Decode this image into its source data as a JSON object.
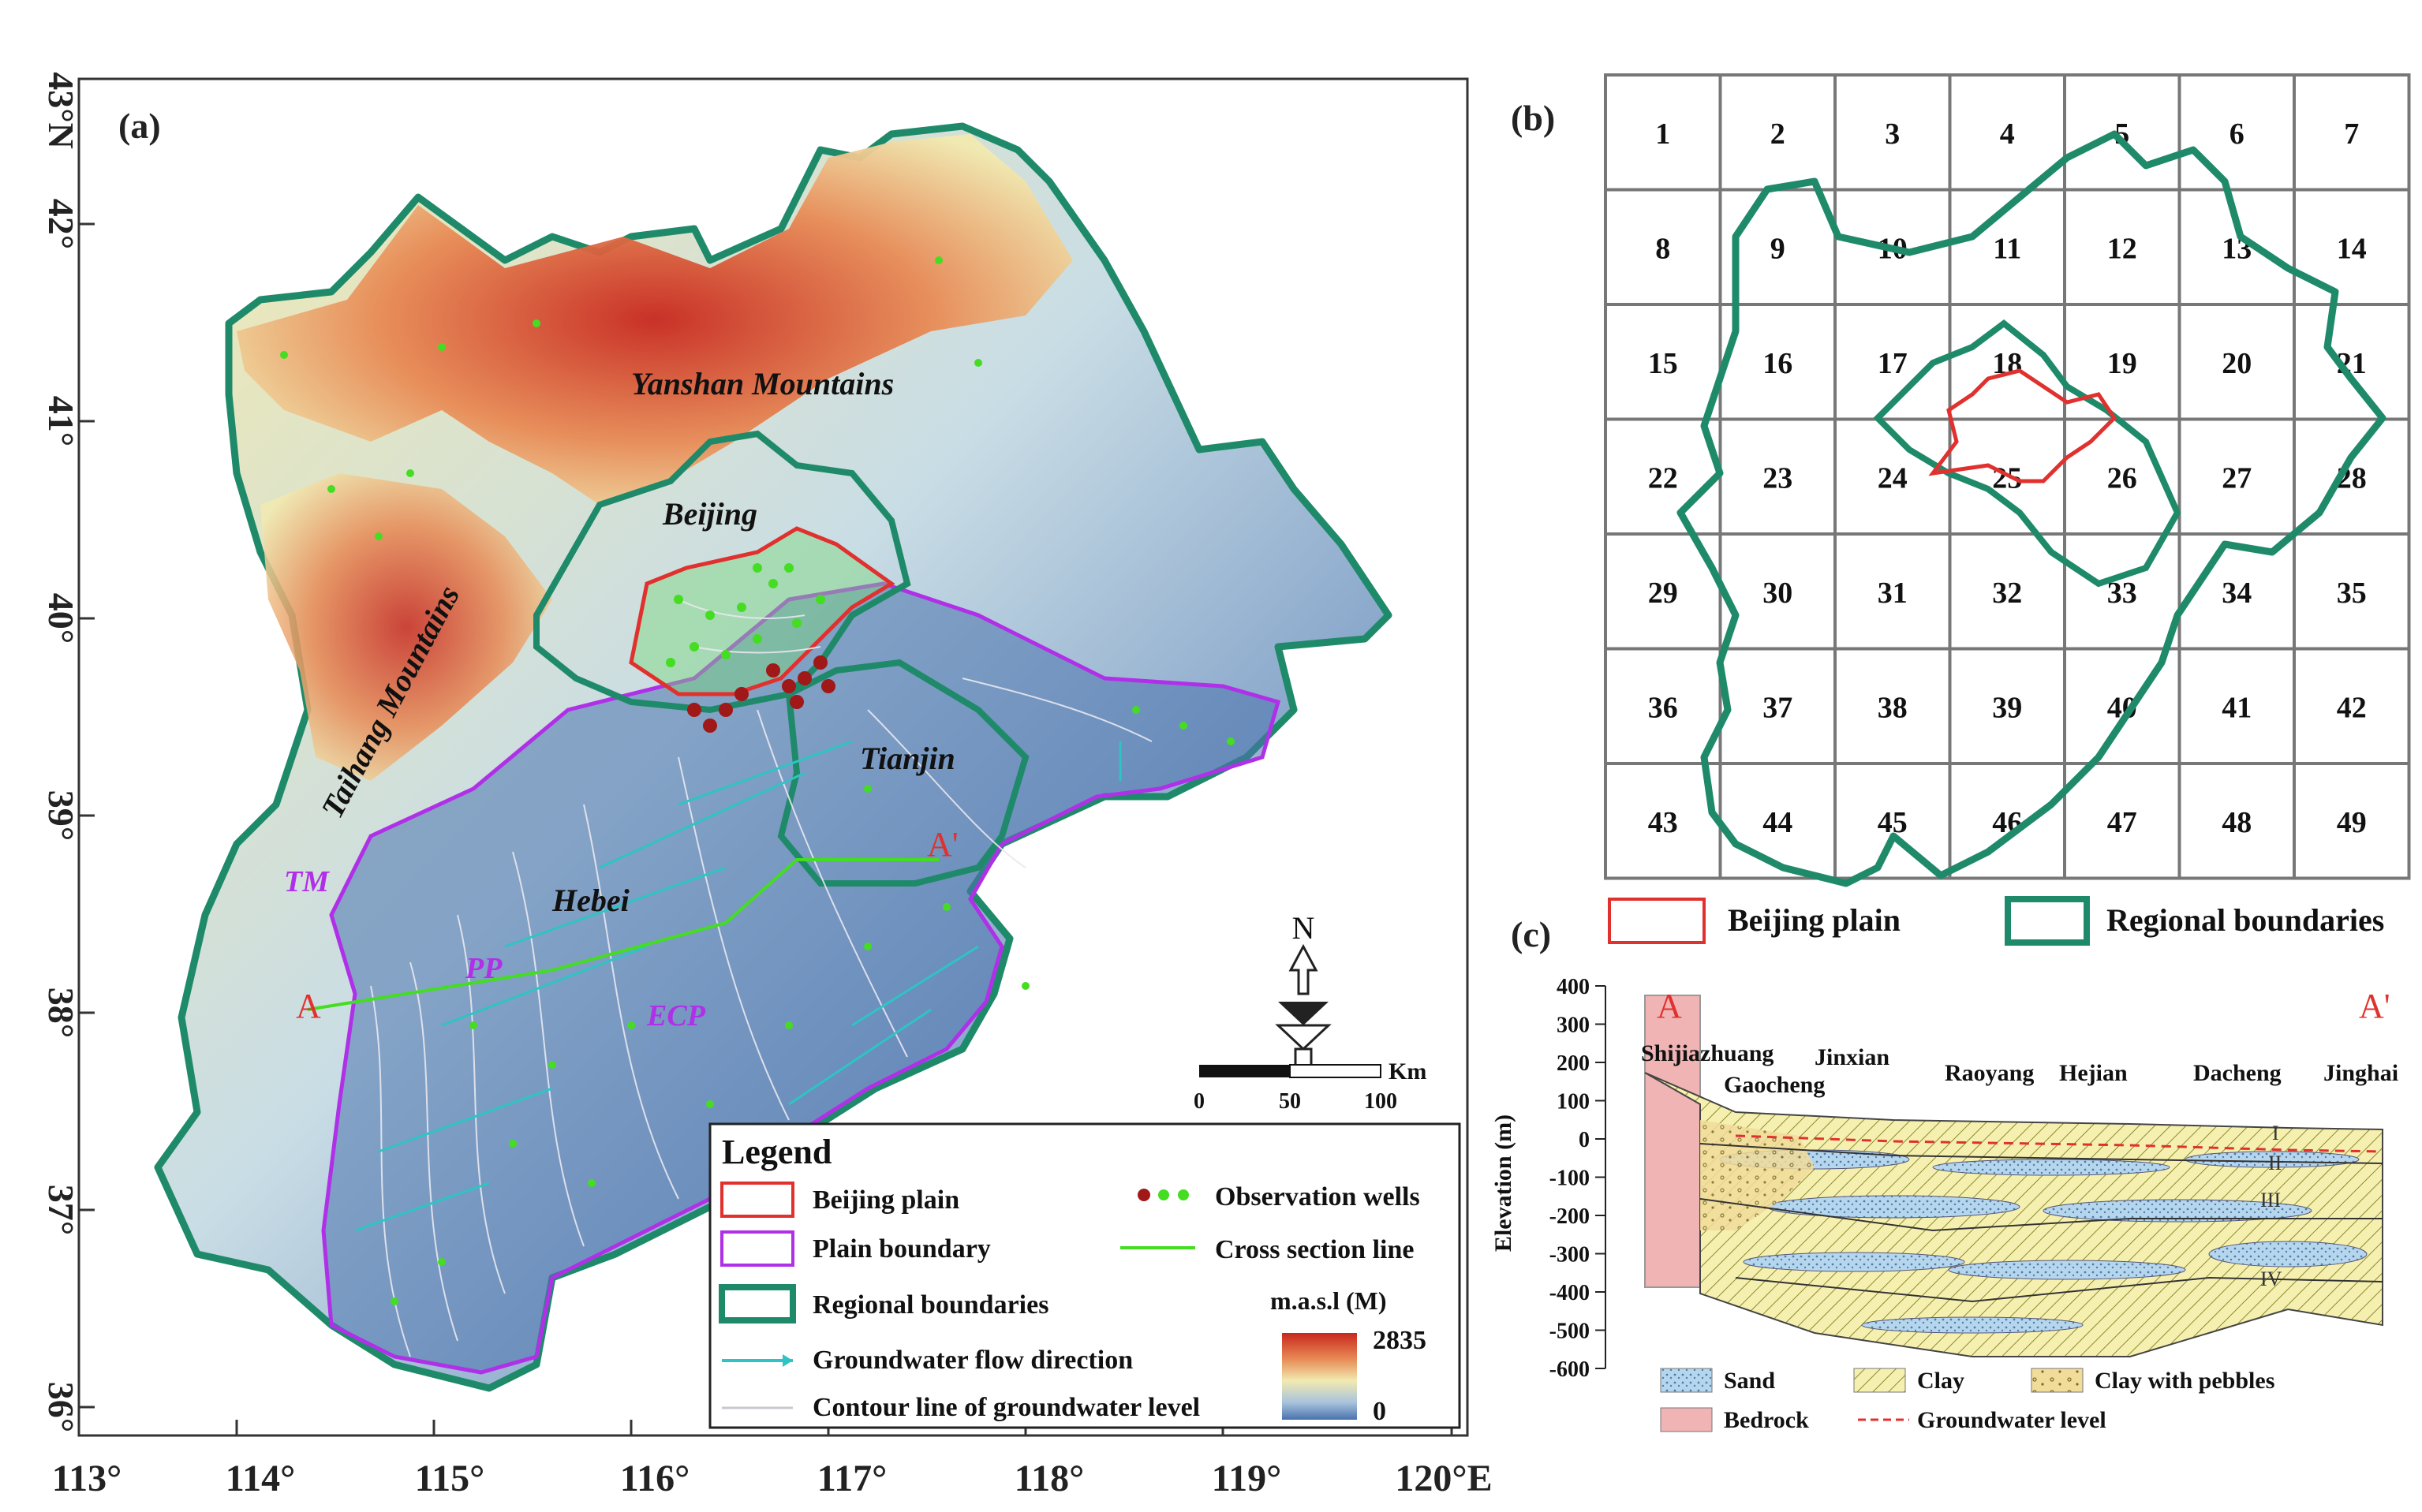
{
  "panel_a": {
    "label": "(a)",
    "lat_labels": [
      "43°N",
      "42°",
      "41°",
      "40°",
      "39°",
      "38°",
      "37°",
      "36°"
    ],
    "lon_labels": [
      "113°",
      "114°",
      "115°",
      "116°",
      "117°",
      "118°",
      "119°",
      "120°E"
    ],
    "place_labels": {
      "yanshan": "Yanshan Mountains",
      "beijing": "Beijing",
      "taihang": "Taihang Mountains",
      "tianjin": "Tianjin",
      "hebei": "Hebei",
      "tm": "TM",
      "pp": "PP",
      "ecp": "ECP",
      "a_start": "A",
      "a_end": "A'"
    },
    "north": "N",
    "scalebar": {
      "unit": "Km",
      "ticks": [
        "0",
        "50",
        "100"
      ]
    },
    "legend": {
      "title": "Legend",
      "items": {
        "beijing_plain": "Beijing plain",
        "plain_boundary": "Plain boundary",
        "regional": "Regional boundaries",
        "flow": "Groundwater flow direction",
        "contour": "Contour line of groundwater level",
        "wells": "Observation wells",
        "cross": "Cross section line"
      },
      "elevation_title": "m.a.s.l (M)",
      "elevation_max": "2835",
      "elevation_min": "0"
    },
    "colors": {
      "beijing_plain": "#e0312f",
      "plain_boundary": "#b030e8",
      "regional": "#1f8a6a",
      "flow": "#2ec4c4",
      "wells_red": "#a01818",
      "wells_green": "#44dd22",
      "low": "#4a73ad",
      "mid": "#f2eab0",
      "high": "#c8281e"
    }
  },
  "panel_b": {
    "label": "(b)",
    "cells": [
      "1",
      "2",
      "3",
      "4",
      "5",
      "6",
      "7",
      "8",
      "9",
      "10",
      "11",
      "12",
      "13",
      "14",
      "15",
      "16",
      "17",
      "18",
      "19",
      "20",
      "21",
      "22",
      "23",
      "24",
      "25",
      "26",
      "27",
      "28",
      "29",
      "30",
      "31",
      "32",
      "33",
      "34",
      "35",
      "36",
      "37",
      "38",
      "39",
      "40",
      "41",
      "42",
      "43",
      "44",
      "45",
      "46",
      "47",
      "48",
      "49"
    ],
    "legend": {
      "beijing_plain": "Beijing plain",
      "regional": "Regional boundaries"
    }
  },
  "panel_c": {
    "label": "(c)",
    "a_start": "A",
    "a_end": "A'",
    "ylabel": "Elevation (m)",
    "yticks": [
      "400",
      "300",
      "200",
      "100",
      "0",
      "-100",
      "-200",
      "-300",
      "-400",
      "-500",
      "-600"
    ],
    "places": {
      "shijiazhuang": "Shijiazhuang",
      "jinxian": "Jinxian",
      "gaocheng": "Gaocheng",
      "raoyang": "Raoyang",
      "hejian": "Hejian",
      "dacheng": "Dacheng",
      "jinghai": "Jinghai"
    },
    "aquifers": [
      "I",
      "II",
      "III",
      "IV"
    ],
    "legend": {
      "sand": "Sand",
      "clay": "Clay",
      "clay_pebbles": "Clay with pebbles",
      "bedrock": "Bedrock",
      "gw_level": "Groundwater level"
    }
  }
}
